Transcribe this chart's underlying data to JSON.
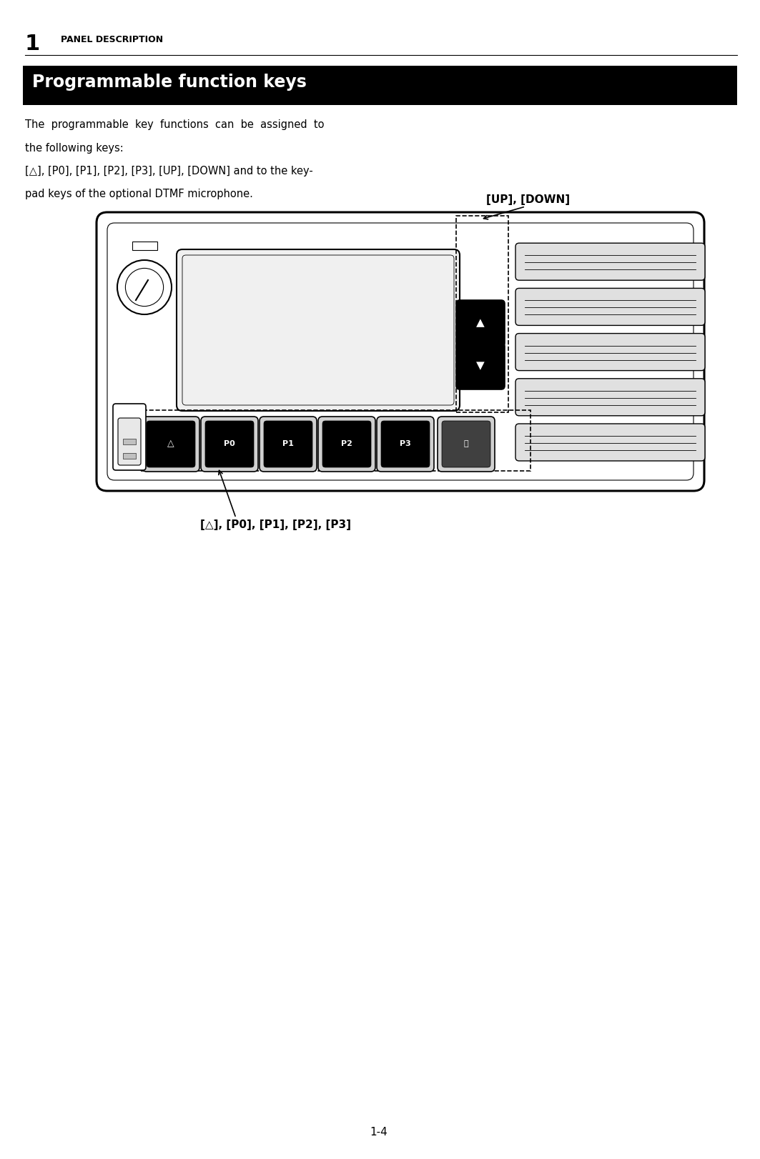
{
  "page_number": "1-4",
  "chapter_number": "1",
  "chapter_title": "PANEL DESCRIPTION",
  "section_title": "Programmable function keys",
  "body_text_line1": "The  programmable  key  functions  can  be  assigned  to",
  "body_text_line2": "the following keys:",
  "body_text_line3": "[△], [P0], [P1], [P2], [P3], [UP], [DOWN] and to the key-",
  "body_text_line4": "pad keys of the optional DTMF microphone.",
  "label_up_down": "[UP], [DOWN]",
  "label_p_keys": "[△], [P0], [P1], [P2], [P3]",
  "bg_color": "#ffffff",
  "header_bg": "#000000",
  "header_text_color": "#ffffff",
  "body_text_color": "#000000"
}
